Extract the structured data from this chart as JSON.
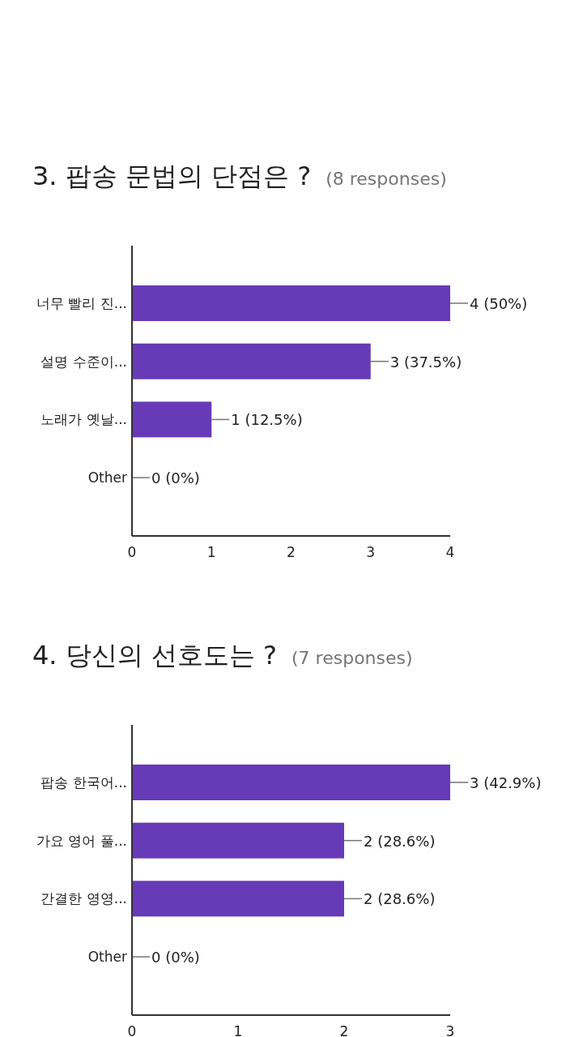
{
  "chart_data": [
    {
      "type": "bar",
      "orientation": "horizontal",
      "title": "3. 팝송 문법의 단점은 ?",
      "subtitle": "(8 responses)",
      "categories": [
        "너무 빨리 진...",
        "설명 수준이...",
        "노래가 옛날...",
        "Other"
      ],
      "values": [
        4,
        3,
        1,
        0
      ],
      "value_labels": [
        "4 (50%)",
        "3 (37.5%)",
        "1 (12.5%)",
        "0 (0%)"
      ],
      "color": "#673ab7",
      "xlim": [
        0,
        4
      ],
      "xticks": [
        0,
        1,
        2,
        3,
        4
      ]
    },
    {
      "type": "bar",
      "orientation": "horizontal",
      "title": "4. 당신의 선호도는 ?",
      "subtitle": "(7 responses)",
      "categories": [
        "팝송 한국어...",
        "가요 영어 풀...",
        "간결한 영영...",
        "Other"
      ],
      "values": [
        3,
        2,
        2,
        0
      ],
      "value_labels": [
        "3 (42.9%)",
        "2 (28.6%)",
        "2 (28.6%)",
        "0 (0%)"
      ],
      "color": "#673ab7",
      "xlim": [
        0,
        3
      ],
      "xticks": [
        0,
        1,
        2,
        3
      ]
    }
  ]
}
